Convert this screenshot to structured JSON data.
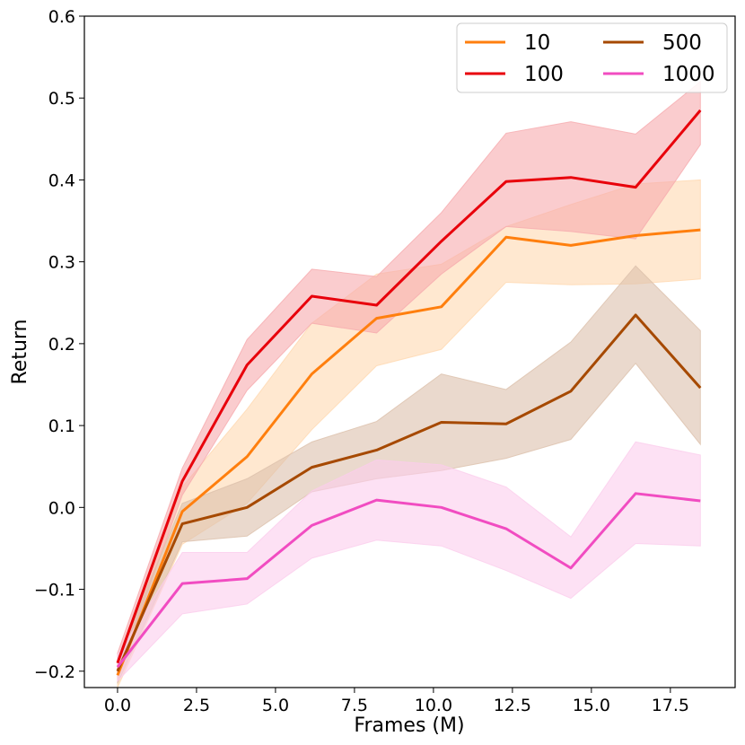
{
  "chart_data": {
    "type": "line",
    "title": "",
    "xlabel": "Frames (M)",
    "ylabel": "Return",
    "xlim": [
      -1.05,
      19.55
    ],
    "ylim": [
      -0.22,
      0.6
    ],
    "x_ticks": [
      0.0,
      2.5,
      5.0,
      7.5,
      10.0,
      12.5,
      15.0,
      17.5
    ],
    "x_tick_labels": [
      "0.0",
      "2.5",
      "5.0",
      "7.5",
      "10.0",
      "12.5",
      "15.0",
      "17.5"
    ],
    "y_ticks": [
      -0.2,
      -0.1,
      0.0,
      0.1,
      0.2,
      0.3,
      0.4,
      0.5,
      0.6
    ],
    "y_tick_labels": [
      "−0.2",
      "−0.1",
      "0.0",
      "0.1",
      "0.2",
      "0.3",
      "0.4",
      "0.5",
      "0.6"
    ],
    "grid": false,
    "legend_position": "top-right",
    "x": [
      0.0,
      2.05,
      4.1,
      6.15,
      8.2,
      10.25,
      12.3,
      14.35,
      16.4,
      18.45
    ],
    "series": [
      {
        "name": "10",
        "color": "#ff7f0e",
        "band_color": "#ffd8b0",
        "values": [
          -0.205,
          -0.005,
          0.062,
          0.163,
          0.231,
          0.245,
          0.33,
          0.32,
          0.332,
          0.339
        ],
        "lower": [
          -0.22,
          -0.045,
          0.005,
          0.095,
          0.173,
          0.193,
          0.275,
          0.272,
          0.273,
          0.279
        ],
        "upper": [
          -0.19,
          0.025,
          0.12,
          0.225,
          0.285,
          0.297,
          0.343,
          0.37,
          0.395,
          0.4
        ]
      },
      {
        "name": "100",
        "color": "#e8000b",
        "band_color": "#f6aaae",
        "values": [
          -0.19,
          0.032,
          0.174,
          0.258,
          0.247,
          0.325,
          0.398,
          0.403,
          0.391,
          0.485
        ],
        "lower": [
          -0.205,
          0.015,
          0.143,
          0.225,
          0.213,
          0.285,
          0.343,
          0.337,
          0.328,
          0.443
        ],
        "upper": [
          -0.178,
          0.048,
          0.205,
          0.291,
          0.282,
          0.36,
          0.457,
          0.471,
          0.456,
          0.52
        ]
      },
      {
        "name": "500",
        "color": "#a64900",
        "band_color": "#dcc0ab",
        "values": [
          -0.2,
          -0.02,
          0.0,
          0.049,
          0.07,
          0.104,
          0.102,
          0.142,
          0.235,
          0.146
        ],
        "lower": [
          -0.215,
          -0.042,
          -0.035,
          0.019,
          0.035,
          0.045,
          0.06,
          0.083,
          0.176,
          0.077
        ],
        "upper": [
          -0.185,
          0.005,
          0.035,
          0.08,
          0.105,
          0.163,
          0.144,
          0.202,
          0.295,
          0.216
        ]
      },
      {
        "name": "1000",
        "color": "#f14cc1",
        "band_color": "#fbcdec",
        "values": [
          -0.195,
          -0.093,
          -0.087,
          -0.022,
          0.009,
          0.0,
          -0.026,
          -0.074,
          0.017,
          0.008
        ],
        "lower": [
          -0.212,
          -0.13,
          -0.118,
          -0.062,
          -0.04,
          -0.047,
          -0.077,
          -0.111,
          -0.044,
          -0.047
        ],
        "upper": [
          -0.18,
          -0.055,
          -0.055,
          0.02,
          0.058,
          0.052,
          0.025,
          -0.036,
          0.08,
          0.064
        ]
      }
    ]
  }
}
